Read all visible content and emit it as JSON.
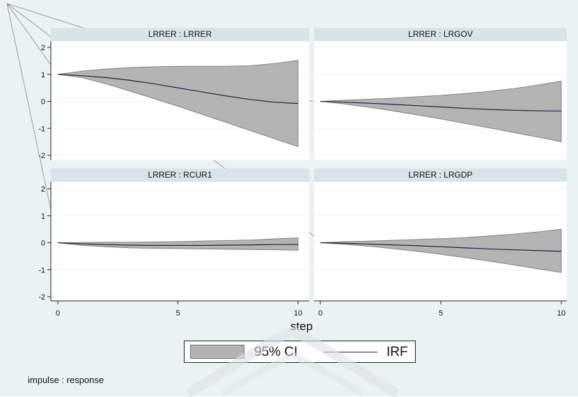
{
  "chart_data": [
    {
      "type": "area",
      "title": "LRRER : LRRER",
      "x": [
        0,
        1,
        2,
        3,
        4,
        5,
        6,
        7,
        8,
        9,
        10
      ],
      "series": [
        {
          "name": "IRF",
          "values": [
            1.0,
            0.95,
            0.88,
            0.78,
            0.65,
            0.5,
            0.35,
            0.2,
            0.07,
            -0.03,
            -0.08
          ]
        },
        {
          "name": "95% CI",
          "lower": [
            1.0,
            0.88,
            0.65,
            0.38,
            0.1,
            -0.18,
            -0.48,
            -0.78,
            -1.08,
            -1.38,
            -1.68
          ],
          "upper": [
            1.0,
            1.12,
            1.2,
            1.25,
            1.28,
            1.3,
            1.3,
            1.3,
            1.32,
            1.4,
            1.52
          ]
        }
      ],
      "ylim": [
        -2,
        2
      ]
    },
    {
      "type": "area",
      "title": "LRRER : LRGOV",
      "x": [
        0,
        1,
        2,
        3,
        4,
        5,
        6,
        7,
        8,
        9,
        10
      ],
      "series": [
        {
          "name": "IRF",
          "values": [
            0.0,
            -0.03,
            -0.07,
            -0.11,
            -0.16,
            -0.21,
            -0.26,
            -0.3,
            -0.33,
            -0.35,
            -0.36
          ]
        },
        {
          "name": "95% CI",
          "lower": [
            0.0,
            -0.1,
            -0.22,
            -0.35,
            -0.5,
            -0.65,
            -0.82,
            -0.98,
            -1.15,
            -1.32,
            -1.5
          ],
          "upper": [
            0.0,
            0.04,
            0.08,
            0.12,
            0.17,
            0.22,
            0.29,
            0.37,
            0.47,
            0.6,
            0.75
          ]
        }
      ],
      "ylim": [
        -2,
        2
      ]
    },
    {
      "type": "area",
      "title": "LRRER : RCUR1",
      "x": [
        0,
        1,
        2,
        3,
        4,
        5,
        6,
        7,
        8,
        9,
        10
      ],
      "series": [
        {
          "name": "IRF",
          "values": [
            0.0,
            -0.04,
            -0.07,
            -0.09,
            -0.1,
            -0.1,
            -0.1,
            -0.09,
            -0.08,
            -0.07,
            -0.06
          ]
        },
        {
          "name": "95% CI",
          "lower": [
            0.0,
            -0.1,
            -0.15,
            -0.19,
            -0.21,
            -0.22,
            -0.23,
            -0.24,
            -0.25,
            -0.26,
            -0.28
          ],
          "upper": [
            0.0,
            0.01,
            0.02,
            0.02,
            0.03,
            0.04,
            0.06,
            0.08,
            0.1,
            0.14,
            0.18
          ]
        }
      ],
      "ylim": [
        -2,
        2
      ]
    },
    {
      "type": "area",
      "title": "LRRER : LRGDP",
      "x": [
        0,
        1,
        2,
        3,
        4,
        5,
        6,
        7,
        8,
        9,
        10
      ],
      "series": [
        {
          "name": "IRF",
          "values": [
            0.0,
            -0.02,
            -0.05,
            -0.08,
            -0.11,
            -0.15,
            -0.19,
            -0.23,
            -0.26,
            -0.29,
            -0.32
          ]
        },
        {
          "name": "95% CI",
          "lower": [
            0.0,
            -0.06,
            -0.13,
            -0.22,
            -0.32,
            -0.43,
            -0.55,
            -0.68,
            -0.82,
            -0.96,
            -1.1
          ],
          "upper": [
            0.0,
            0.04,
            0.06,
            0.09,
            0.12,
            0.15,
            0.19,
            0.25,
            0.32,
            0.4,
            0.5
          ]
        }
      ],
      "ylim": [
        -2,
        2
      ]
    }
  ],
  "axes": {
    "yticks": [
      "-2",
      "-1",
      "0",
      "1",
      "2"
    ],
    "xticks": [
      "0",
      "5",
      "10"
    ],
    "xlabel": "step"
  },
  "legend": {
    "ci_label": "95% CI",
    "irf_label": "IRF"
  },
  "note": "impulse : response",
  "colors": {
    "band": "#b4b4b4",
    "band_edge": "#6e6e6e",
    "irf_line": "#1a2448",
    "strip": "#d8e4e7",
    "plot_bg": "#ffffff",
    "outer_bg": "#eaf2f3"
  }
}
